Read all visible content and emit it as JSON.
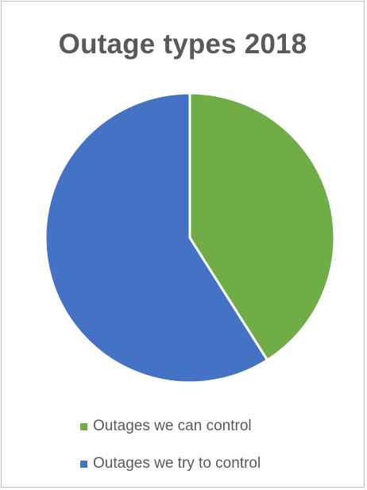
{
  "chart_data": {
    "type": "pie",
    "title": "Outage types 2018",
    "categories": [
      "Outages we can control",
      "Outages we try to control"
    ],
    "values": [
      41,
      59
    ],
    "colors": [
      "#70ad47",
      "#4472c4"
    ],
    "start_angle_deg": 0,
    "direction": "clockwise",
    "slice_border_color": "#ffffff",
    "legend_position": "bottom",
    "data_labels": false
  }
}
